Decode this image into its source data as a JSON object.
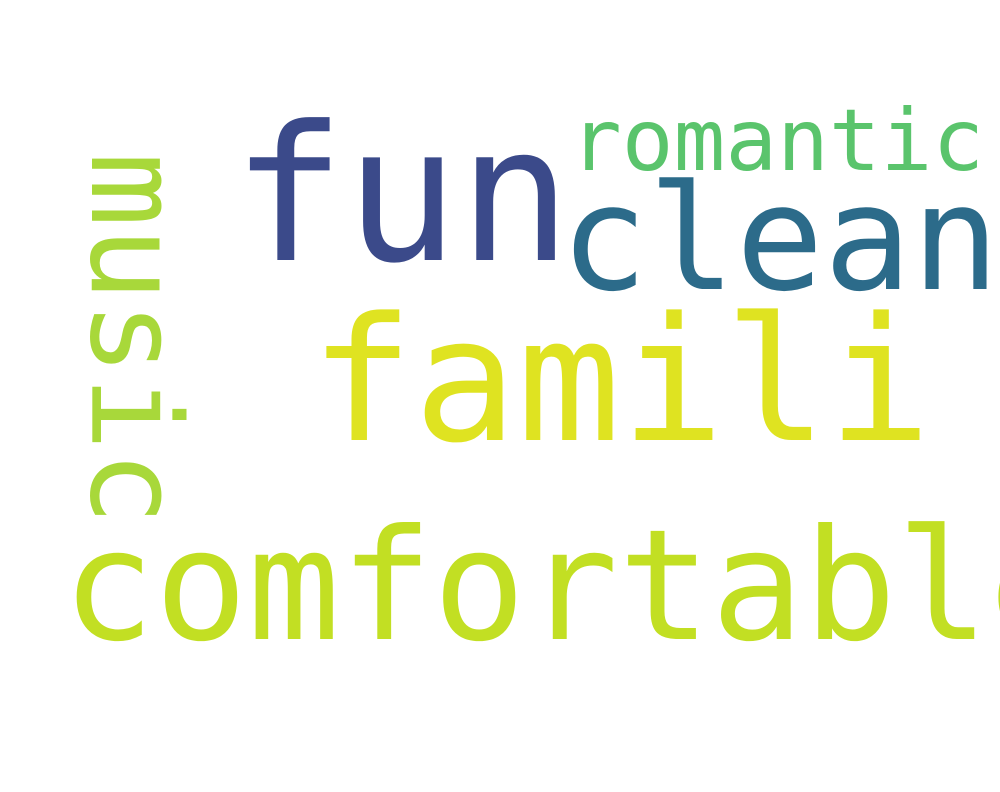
{
  "words": {
    "fun": {
      "text": "fun",
      "color": "#3b4a8a"
    },
    "clean": {
      "text": "clean",
      "color": "#2c6b8a"
    },
    "romantic": {
      "text": "romantic",
      "color": "#5ac46c"
    },
    "famili": {
      "text": "famili",
      "color": "#dfe321"
    },
    "comfortable": {
      "text": "comfortable",
      "color": "#c2df23"
    },
    "music": {
      "text": "music",
      "color": "#a8d83a",
      "orientation": "vertical"
    }
  }
}
